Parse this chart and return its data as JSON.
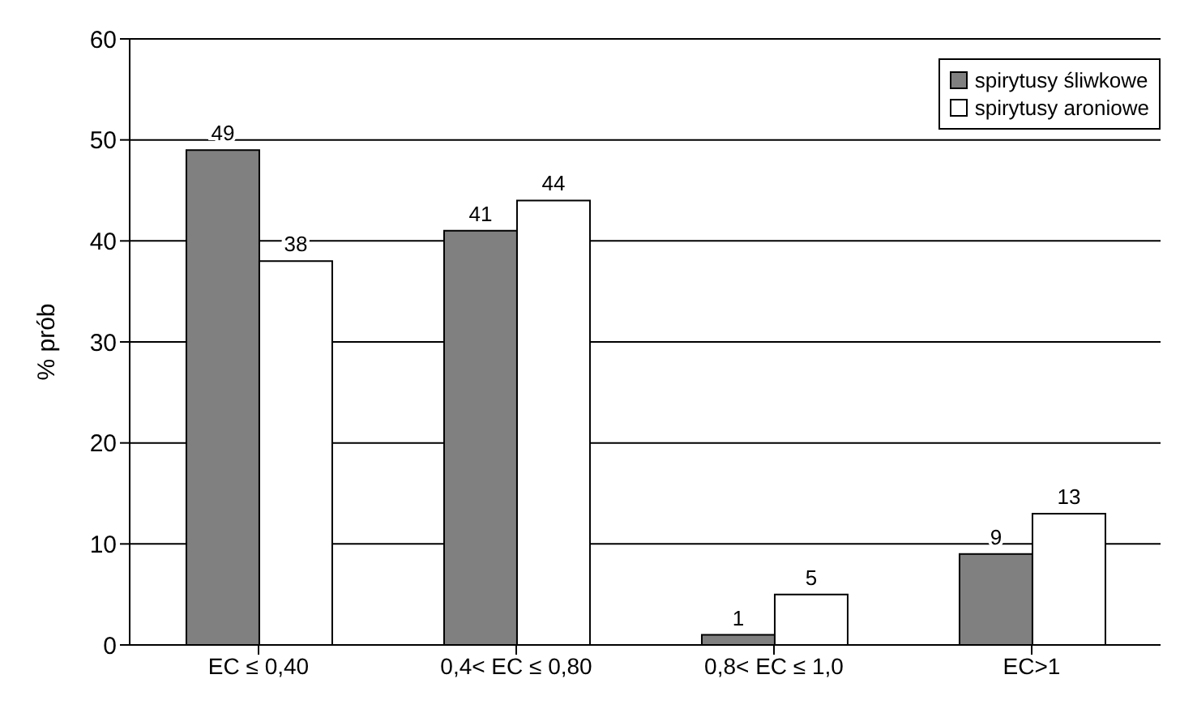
{
  "chart_data": {
    "type": "bar",
    "ylabel": "% prób",
    "categories": [
      "EC ≤ 0,40",
      "0,4< EC ≤ 0,80",
      "0,8< EC ≤ 1,0",
      "EC>1"
    ],
    "series": [
      {
        "name": "spirytusy śliwkowe",
        "color": "#808080",
        "values": [
          49,
          41,
          1,
          9
        ]
      },
      {
        "name": "spirytusy aroniowe",
        "color": "#ffffff",
        "values": [
          38,
          44,
          5,
          13
        ]
      }
    ],
    "ylim": [
      0,
      60
    ],
    "yticks": [
      0,
      10,
      20,
      30,
      40,
      50,
      60
    ],
    "grid": "y",
    "legend": "top right",
    "data_labels": true
  }
}
